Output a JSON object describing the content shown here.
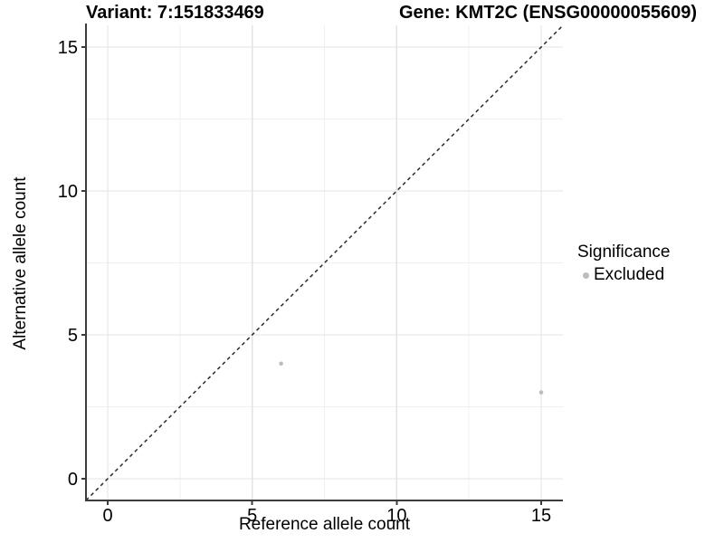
{
  "chart_data": {
    "type": "scatter",
    "title_variant": "Variant: 7:151833469",
    "title_gene": "Gene: KMT2C (ENSG00000055609)",
    "xlabel": "Reference allele count",
    "ylabel": "Alternative allele count",
    "xlim": [
      -0.75,
      15.75
    ],
    "ylim": [
      -0.75,
      15.75
    ],
    "xticks": [
      0,
      5,
      10,
      15
    ],
    "yticks": [
      0,
      5,
      10,
      15
    ],
    "x_minor_breaks": [
      2.5,
      7.5,
      12.5
    ],
    "y_minor_breaks": [
      2.5,
      7.5,
      12.5
    ],
    "grid": {
      "major": true,
      "minor": true
    },
    "series": [
      {
        "name": "Excluded",
        "color": "#bdbdbd",
        "points": [
          [
            6,
            4
          ],
          [
            15,
            3
          ]
        ]
      }
    ],
    "diagonal": {
      "style": "dashed",
      "from": [
        -0.75,
        -0.75
      ],
      "to": [
        15.75,
        15.75
      ],
      "slope": 1,
      "intercept": 0
    },
    "legend": {
      "title": "Significance",
      "position": "right",
      "entries": [
        {
          "label": "Excluded",
          "color": "#bdbdbd"
        }
      ]
    }
  },
  "colors": {
    "background": "#ffffff",
    "point": "#bdbdbd",
    "grid_major": "#e3e3e3",
    "grid_minor": "#f0f0f0",
    "axis_line": "#3c3c3c",
    "diagonal_line": "#2a2a2a",
    "text": "#000000"
  }
}
